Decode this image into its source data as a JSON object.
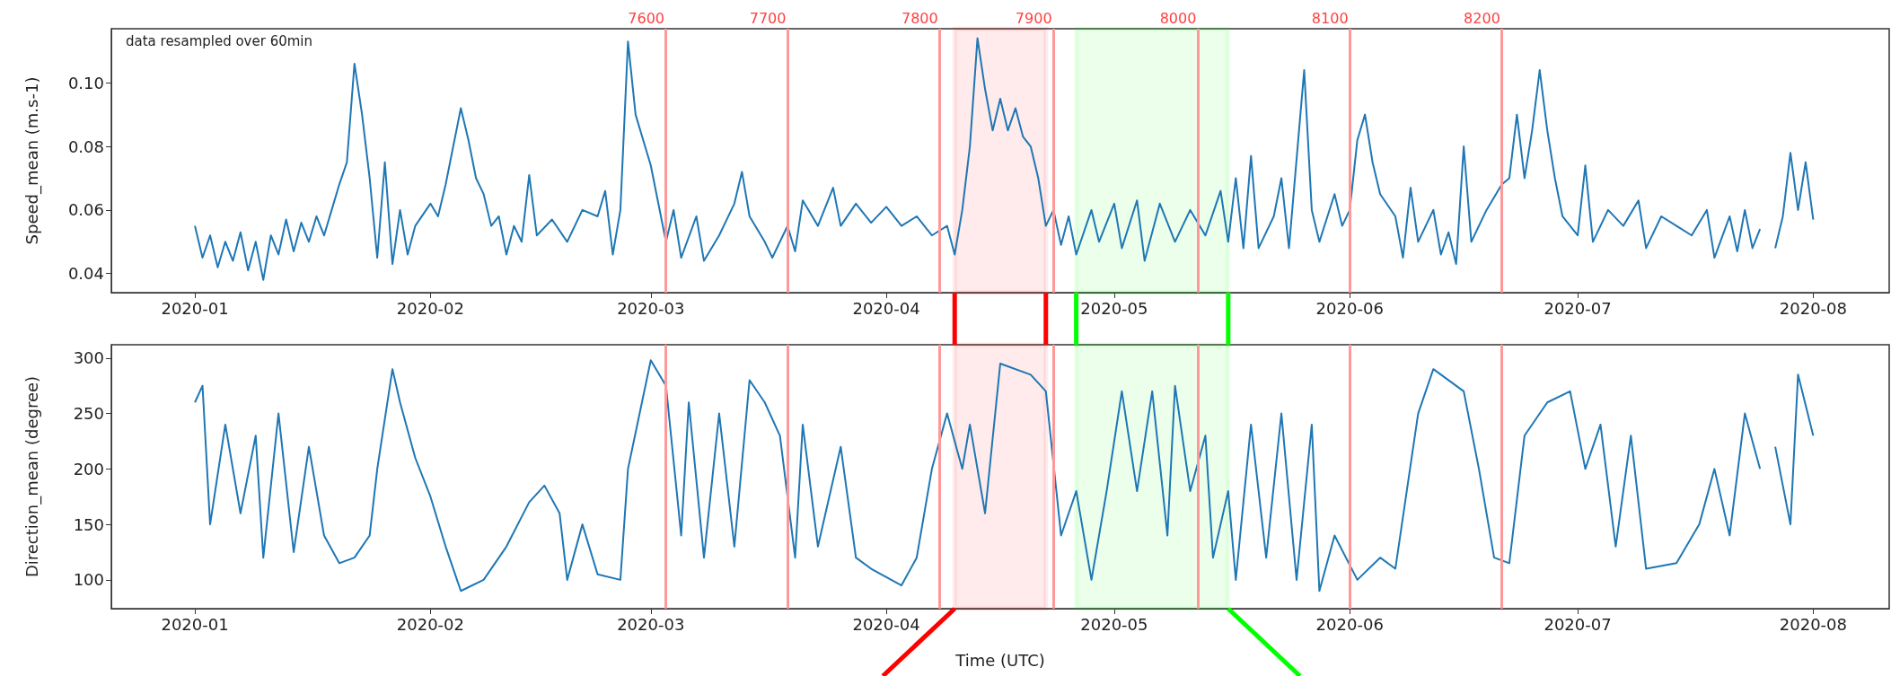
{
  "chart_data": [
    {
      "type": "line",
      "ylabel": "Speed_mean (m.s-1)",
      "annotations": [
        "data resampled over 60min"
      ],
      "color": "#1f77b4",
      "marker": "none",
      "grid": false,
      "x": [
        "2020-01-01",
        "2020-01-02",
        "2020-01-03",
        "2020-01-04",
        "2020-01-05",
        "2020-01-06",
        "2020-01-07",
        "2020-01-08",
        "2020-01-09",
        "2020-01-10",
        "2020-01-11",
        "2020-01-12",
        "2020-01-13",
        "2020-01-14",
        "2020-01-15",
        "2020-01-16",
        "2020-01-17",
        "2020-01-18",
        "2020-01-19",
        "2020-01-20",
        "2020-01-21",
        "2020-01-22",
        "2020-01-23",
        "2020-01-24",
        "2020-01-25",
        "2020-01-26",
        "2020-01-27",
        "2020-01-28",
        "2020-01-29",
        "2020-01-30",
        "2020-02-01",
        "2020-02-02",
        "2020-02-03",
        "2020-02-04",
        "2020-02-05",
        "2020-02-06",
        "2020-02-07",
        "2020-02-08",
        "2020-02-09",
        "2020-02-10",
        "2020-02-11",
        "2020-02-12",
        "2020-02-13",
        "2020-02-14",
        "2020-02-15",
        "2020-02-17",
        "2020-02-19",
        "2020-02-21",
        "2020-02-23",
        "2020-02-24",
        "2020-02-25",
        "2020-02-26",
        "2020-02-27",
        "2020-02-28",
        "2020-02-29",
        "2020-03-01",
        "2020-03-02",
        "2020-03-03",
        "2020-03-04",
        "2020-03-05",
        "2020-03-07",
        "2020-03-08",
        "2020-03-10",
        "2020-03-12",
        "2020-03-13",
        "2020-03-14",
        "2020-03-16",
        "2020-03-17",
        "2020-03-19",
        "2020-03-20",
        "2020-03-21",
        "2020-03-23",
        "2020-03-25",
        "2020-03-26",
        "2020-03-28",
        "2020-03-30",
        "2020-04-01",
        "2020-04-03",
        "2020-04-05",
        "2020-04-07",
        "2020-04-09",
        "2020-04-10",
        "2020-04-11",
        "2020-04-12",
        "2020-04-13",
        "2020-04-14",
        "2020-04-15",
        "2020-04-16",
        "2020-04-17",
        "2020-04-18",
        "2020-04-19",
        "2020-04-20",
        "2020-04-21",
        "2020-04-22",
        "2020-04-23",
        "2020-04-24",
        "2020-04-25",
        "2020-04-26",
        "2020-04-28",
        "2020-04-29",
        "2020-05-01",
        "2020-05-02",
        "2020-05-04",
        "2020-05-05",
        "2020-05-07",
        "2020-05-09",
        "2020-05-11",
        "2020-05-13",
        "2020-05-15",
        "2020-05-16",
        "2020-05-17",
        "2020-05-18",
        "2020-05-19",
        "2020-05-20",
        "2020-05-22",
        "2020-05-23",
        "2020-05-24",
        "2020-05-26",
        "2020-05-27",
        "2020-05-28",
        "2020-05-30",
        "2020-05-31",
        "2020-06-01",
        "2020-06-02",
        "2020-06-03",
        "2020-06-04",
        "2020-06-05",
        "2020-06-07",
        "2020-06-08",
        "2020-06-09",
        "2020-06-10",
        "2020-06-12",
        "2020-06-13",
        "2020-06-14",
        "2020-06-15",
        "2020-06-16",
        "2020-06-17",
        "2020-06-19",
        "2020-06-21",
        "2020-06-22",
        "2020-06-23",
        "2020-06-24",
        "2020-06-25",
        "2020-06-26",
        "2020-06-27",
        "2020-06-28",
        "2020-06-29",
        "2020-07-01",
        "2020-07-02",
        "2020-07-03",
        "2020-07-05",
        "2020-07-07",
        "2020-07-09",
        "2020-07-10",
        "2020-07-12",
        "2020-07-14",
        "2020-07-16",
        "2020-07-18",
        "2020-07-19",
        "2020-07-21",
        "2020-07-22",
        "2020-07-23",
        "2020-07-24",
        "2020-07-25",
        "2020-07-26",
        "2020-07-27",
        "2020-07-28",
        "2020-07-29",
        "2020-07-30",
        "2020-07-31",
        "2020-08-01"
      ],
      "values": [
        0.055,
        0.045,
        0.052,
        0.042,
        0.05,
        0.044,
        0.053,
        0.041,
        0.05,
        0.038,
        0.052,
        0.046,
        0.057,
        0.047,
        0.056,
        0.05,
        0.058,
        0.052,
        0.06,
        0.068,
        0.075,
        0.106,
        0.09,
        0.07,
        0.045,
        0.075,
        0.043,
        0.06,
        0.046,
        0.055,
        0.062,
        0.058,
        0.068,
        0.08,
        0.092,
        0.082,
        0.07,
        0.065,
        0.055,
        0.058,
        0.046,
        0.055,
        0.05,
        0.071,
        0.052,
        0.057,
        0.05,
        0.06,
        0.058,
        0.066,
        0.046,
        0.06,
        0.113,
        0.09,
        0.082,
        0.074,
        0.062,
        0.05,
        0.06,
        0.045,
        0.058,
        0.044,
        0.052,
        0.062,
        0.072,
        0.058,
        0.05,
        0.045,
        0.055,
        0.047,
        0.063,
        0.055,
        0.067,
        0.055,
        0.062,
        0.056,
        0.061,
        0.055,
        0.058,
        0.052,
        0.055,
        0.046,
        0.06,
        0.08,
        0.114,
        0.098,
        0.085,
        0.095,
        0.085,
        0.092,
        0.083,
        0.08,
        0.07,
        0.055,
        0.06,
        0.049,
        0.058,
        0.046,
        0.06,
        0.05,
        0.062,
        0.048,
        0.063,
        0.044,
        0.062,
        0.05,
        0.06,
        0.052,
        0.066,
        0.05,
        0.07,
        0.048,
        0.077,
        0.048,
        0.058,
        0.07,
        0.048,
        0.104,
        0.06,
        0.05,
        0.065,
        0.055,
        0.06,
        0.082,
        0.09,
        0.075,
        0.065,
        0.058,
        0.045,
        0.067,
        0.05,
        0.06,
        0.046,
        0.053,
        0.043,
        0.08,
        0.05,
        0.06,
        0.068,
        0.07,
        0.09,
        0.07,
        0.085,
        0.104,
        0.085,
        0.07,
        0.058,
        0.052,
        0.074,
        0.05,
        0.06,
        0.055,
        0.063,
        0.048,
        0.058,
        0.055,
        0.052,
        0.06,
        0.045,
        0.058,
        0.047,
        0.06,
        0.048,
        0.054,
        null,
        0.048,
        0.058,
        0.078,
        0.06,
        0.075,
        0.057
      ],
      "xlim": [
        "2019-12-21",
        "2020-08-11"
      ],
      "xticks": [
        "2020-01",
        "2020-02",
        "2020-03",
        "2020-04",
        "2020-05",
        "2020-06",
        "2020-07",
        "2020-08"
      ],
      "ylim": [
        0.034,
        0.117
      ],
      "yticks": [
        0.04,
        0.06,
        0.08,
        {
          "value": 0.1,
          "label": "0.10"
        }
      ],
      "ref_lines": [
        {
          "axis": "x",
          "value": "2020-03-03",
          "label": "7600",
          "color": "#ff9999"
        },
        {
          "axis": "x",
          "value": "2020-03-19",
          "label": "7700",
          "color": "#ff9999"
        },
        {
          "axis": "x",
          "value": "2020-04-08",
          "label": "7800",
          "color": "#ff9999"
        },
        {
          "axis": "x",
          "value": "2020-04-23",
          "label": "7900",
          "color": "#ff9999"
        },
        {
          "axis": "x",
          "value": "2020-05-12",
          "label": "8000",
          "color": "#ff9999"
        },
        {
          "axis": "x",
          "value": "2020-06-01",
          "label": "8100",
          "color": "#ff9999"
        },
        {
          "axis": "x",
          "value": "2020-06-21",
          "label": "8200",
          "color": "#ff9999"
        }
      ],
      "bands": [
        {
          "axis": "x",
          "from": "2020-04-10",
          "to": "2020-04-22",
          "color": "#ff0000"
        },
        {
          "axis": "x",
          "from": "2020-04-26",
          "to": "2020-05-16",
          "color": "#00ff00"
        }
      ]
    },
    {
      "type": "line",
      "ylabel": "Direction_mean (degree)",
      "xlabel": "Time (UTC)",
      "color": "#1f77b4",
      "marker": "none",
      "grid": false,
      "x": [
        "2020-01-01",
        "2020-01-02",
        "2020-01-03",
        "2020-01-05",
        "2020-01-07",
        "2020-01-09",
        "2020-01-10",
        "2020-01-12",
        "2020-01-14",
        "2020-01-16",
        "2020-01-18",
        "2020-01-20",
        "2020-01-22",
        "2020-01-24",
        "2020-01-25",
        "2020-01-27",
        "2020-01-28",
        "2020-01-30",
        "2020-02-01",
        "2020-02-03",
        "2020-02-05",
        "2020-02-08",
        "2020-02-11",
        "2020-02-14",
        "2020-02-16",
        "2020-02-18",
        "2020-02-19",
        "2020-02-21",
        "2020-02-23",
        "2020-02-26",
        "2020-02-27",
        "2020-03-01",
        "2020-03-03",
        "2020-03-05",
        "2020-03-06",
        "2020-03-08",
        "2020-03-10",
        "2020-03-12",
        "2020-03-14",
        "2020-03-16",
        "2020-03-18",
        "2020-03-20",
        "2020-03-21",
        "2020-03-23",
        "2020-03-26",
        "2020-03-28",
        "2020-03-30",
        "2020-04-03",
        "2020-04-05",
        "2020-04-07",
        "2020-04-09",
        "2020-04-11",
        "2020-04-12",
        "2020-04-14",
        "2020-04-16",
        "2020-04-20",
        "2020-04-22",
        "2020-04-24",
        "2020-04-26",
        "2020-04-28",
        "2020-04-30",
        "2020-05-02",
        "2020-05-04",
        "2020-05-06",
        "2020-05-08",
        "2020-05-09",
        "2020-05-11",
        "2020-05-13",
        "2020-05-14",
        "2020-05-16",
        "2020-05-17",
        "2020-05-19",
        "2020-05-21",
        "2020-05-23",
        "2020-05-25",
        "2020-05-27",
        "2020-05-28",
        "2020-05-30",
        "2020-06-02",
        "2020-06-05",
        "2020-06-07",
        "2020-06-10",
        "2020-06-12",
        "2020-06-16",
        "2020-06-18",
        "2020-06-20",
        "2020-06-22",
        "2020-06-24",
        "2020-06-27",
        "2020-06-30",
        "2020-07-02",
        "2020-07-04",
        "2020-07-06",
        "2020-07-08",
        "2020-07-10",
        "2020-07-14",
        "2020-07-17",
        "2020-07-19",
        "2020-07-21",
        "2020-07-23",
        "2020-07-25",
        "2020-07-26",
        "2020-07-27",
        "2020-07-29",
        "2020-07-30",
        "2020-08-01"
      ],
      "values": [
        260,
        275,
        150,
        240,
        160,
        230,
        120,
        250,
        125,
        220,
        140,
        115,
        120,
        140,
        200,
        290,
        260,
        210,
        175,
        130,
        90,
        100,
        130,
        170,
        185,
        160,
        100,
        150,
        105,
        100,
        200,
        298,
        275,
        140,
        260,
        120,
        250,
        130,
        280,
        260,
        230,
        120,
        240,
        130,
        220,
        120,
        110,
        95,
        120,
        200,
        250,
        200,
        240,
        160,
        295,
        285,
        270,
        140,
        180,
        100,
        180,
        270,
        180,
        270,
        140,
        275,
        180,
        230,
        120,
        180,
        100,
        240,
        120,
        250,
        100,
        240,
        90,
        140,
        100,
        120,
        110,
        250,
        290,
        270,
        200,
        120,
        115,
        230,
        260,
        270,
        200,
        240,
        130,
        230,
        110,
        115,
        150,
        200,
        140,
        250,
        200,
        null,
        220,
        150,
        285,
        230
      ],
      "xlim": [
        "2019-12-21",
        "2020-08-11"
      ],
      "xticks": [
        "2020-01",
        "2020-02",
        "2020-03",
        "2020-04",
        "2020-05",
        "2020-06",
        "2020-07",
        "2020-08"
      ],
      "ylim": [
        74,
        312
      ],
      "yticks": [
        100,
        150,
        200,
        250,
        300
      ],
      "ref_lines": [
        {
          "axis": "x",
          "value": "2020-03-03",
          "color": "#ff9999"
        },
        {
          "axis": "x",
          "value": "2020-03-19",
          "color": "#ff9999"
        },
        {
          "axis": "x",
          "value": "2020-04-08",
          "color": "#ff9999"
        },
        {
          "axis": "x",
          "value": "2020-04-23",
          "color": "#ff9999"
        },
        {
          "axis": "x",
          "value": "2020-05-12",
          "color": "#ff9999"
        },
        {
          "axis": "x",
          "value": "2020-06-01",
          "color": "#ff9999"
        },
        {
          "axis": "x",
          "value": "2020-06-21",
          "color": "#ff9999"
        }
      ],
      "bands": [
        {
          "axis": "x",
          "from": "2020-04-10",
          "to": "2020-04-22",
          "color": "#ff0000"
        },
        {
          "axis": "x",
          "from": "2020-04-26",
          "to": "2020-05-16",
          "color": "#00ff00"
        }
      ]
    }
  ]
}
